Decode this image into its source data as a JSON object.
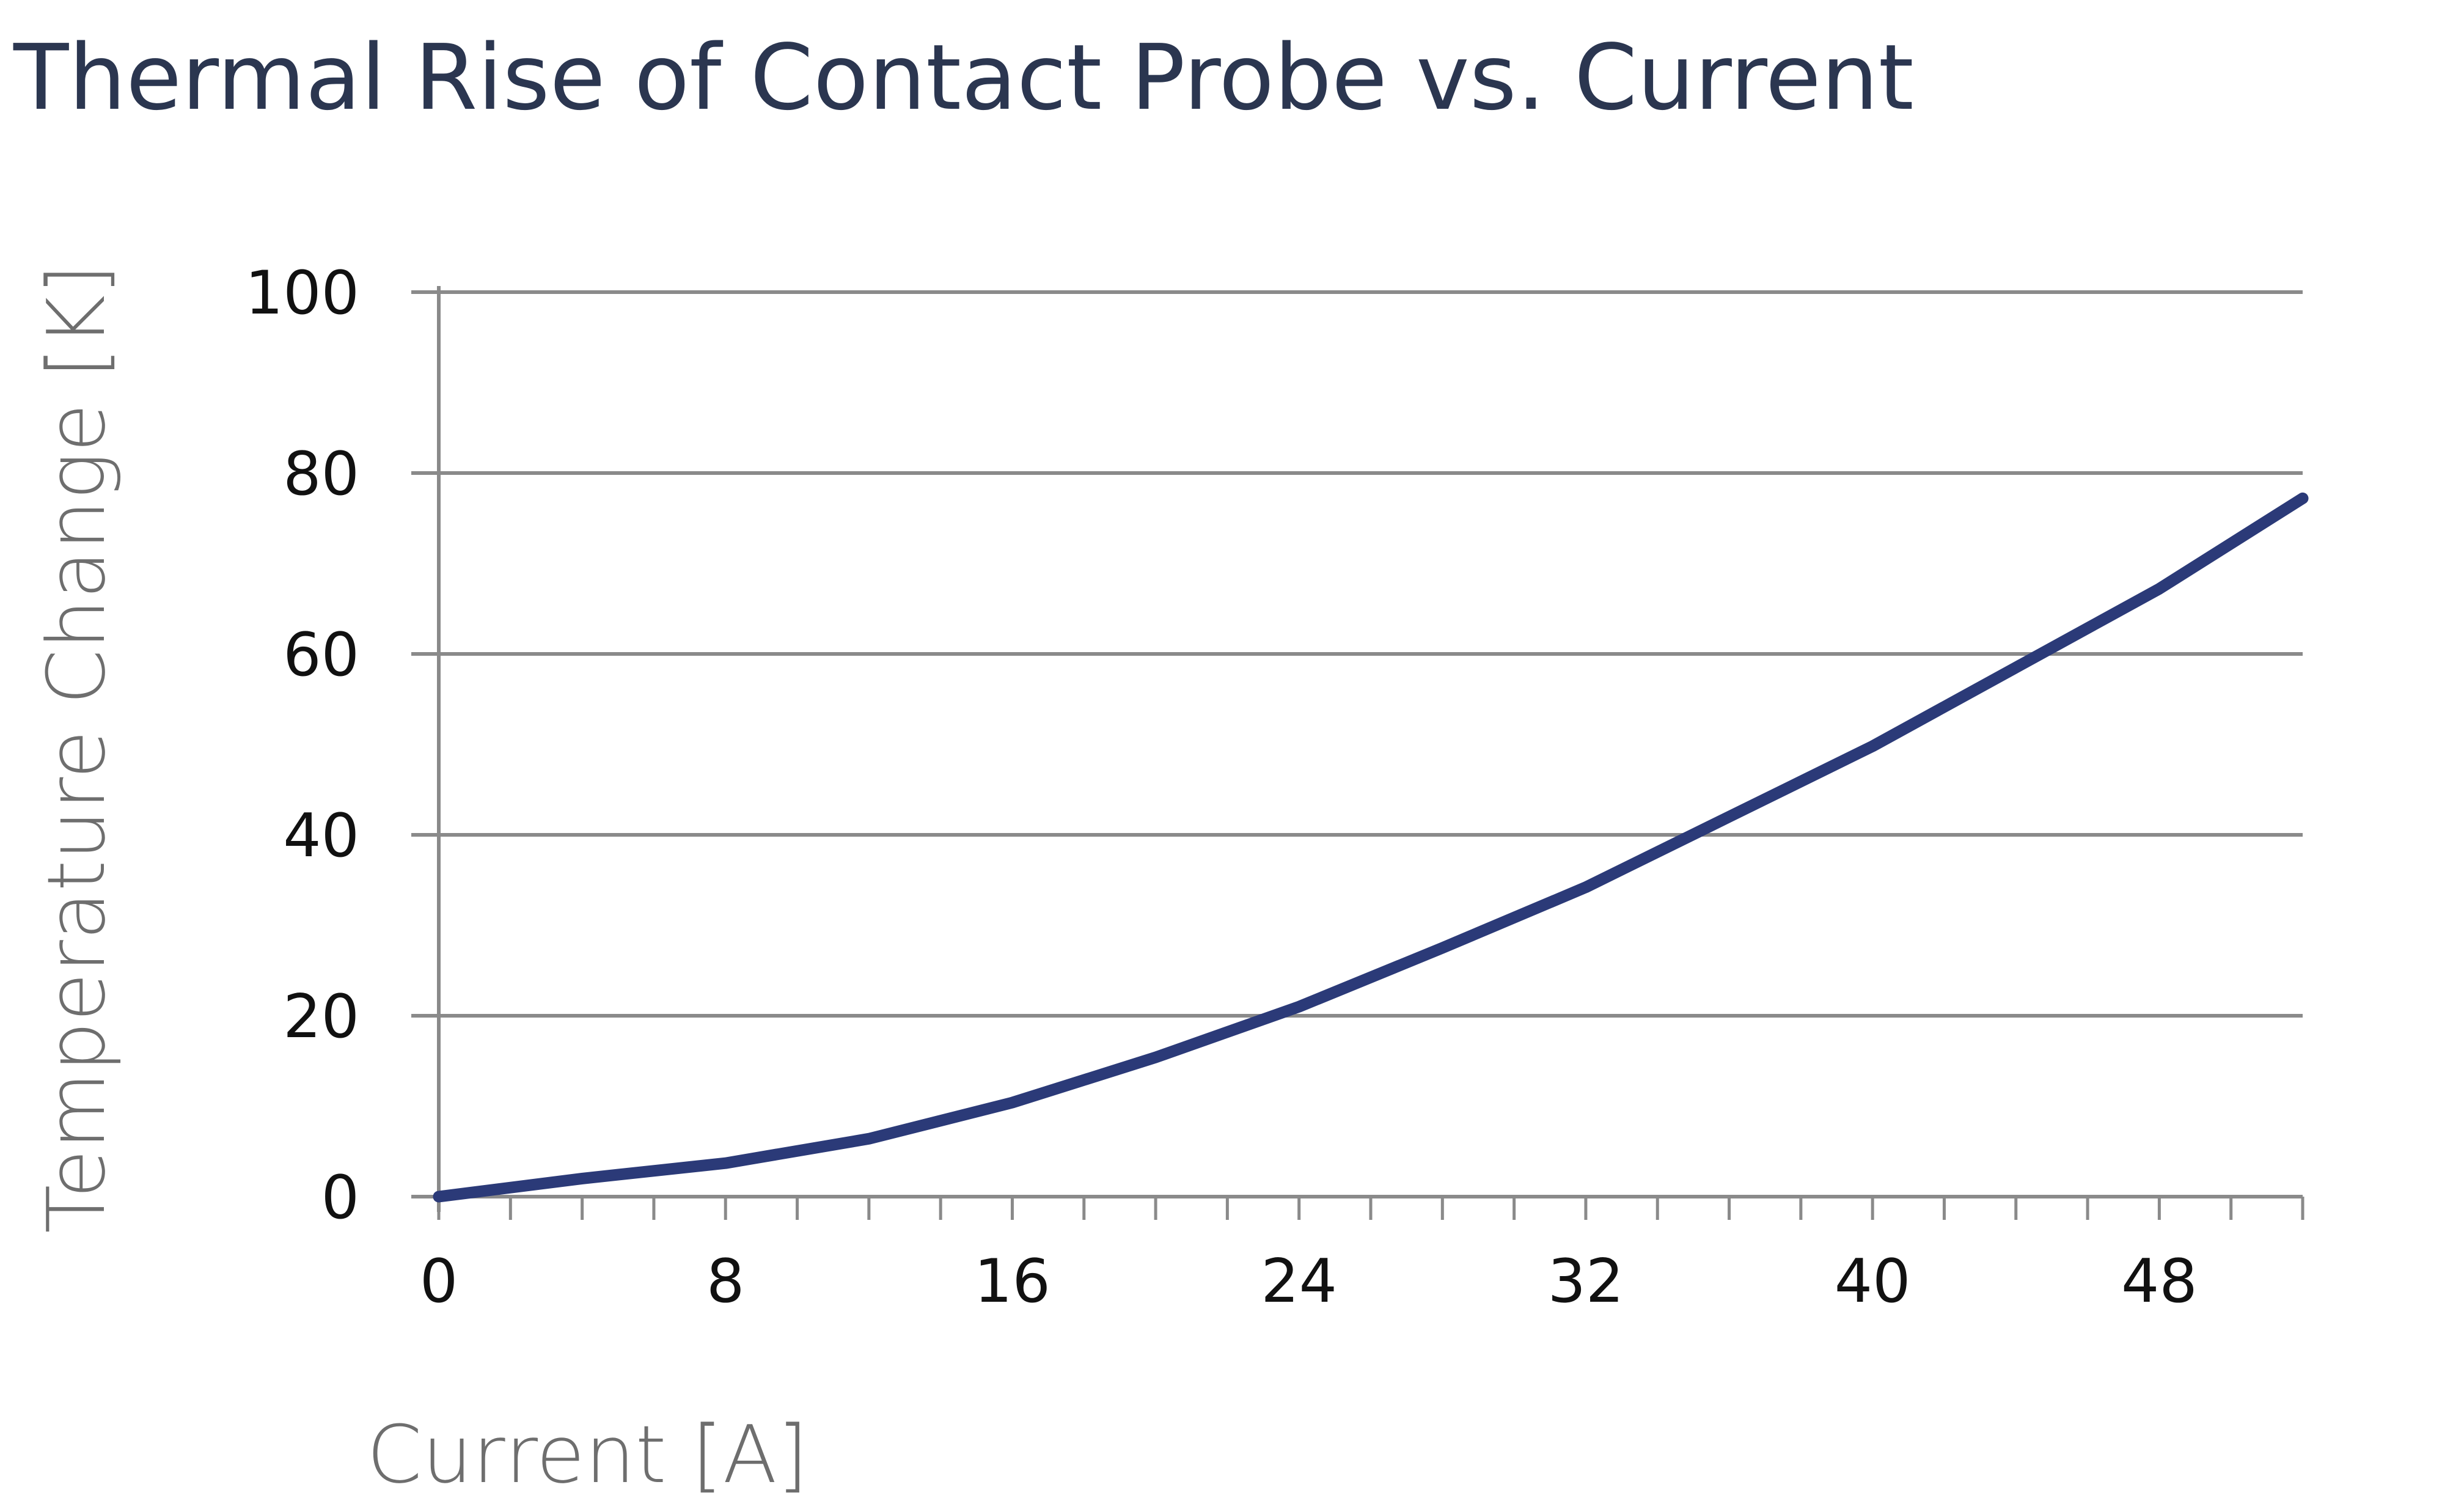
{
  "chart_data": {
    "type": "line",
    "title": "Thermal Rise of Contact Probe vs. Current",
    "xlabel": "Current [A]",
    "ylabel": "Temperature Change [K]",
    "xlim": [
      0,
      52
    ],
    "ylim": [
      0,
      100
    ],
    "x_ticks": [
      0,
      8,
      16,
      24,
      32,
      40,
      48
    ],
    "x_ticks_major_step": 8,
    "x_minor_step": 2,
    "y_ticks": [
      0,
      20,
      40,
      60,
      80,
      100
    ],
    "grid": "horizontal",
    "legend": "none",
    "series": [
      {
        "color": "#2b3a78",
        "x": [
          0,
          4,
          8,
          12,
          16,
          20,
          24,
          28,
          32,
          36,
          40,
          44,
          48,
          52
        ],
        "y": [
          0,
          2,
          3.7,
          6.4,
          10.4,
          15.4,
          21,
          27.5,
          34.2,
          42,
          49.8,
          58.5,
          67.2,
          77.2
        ]
      }
    ]
  }
}
